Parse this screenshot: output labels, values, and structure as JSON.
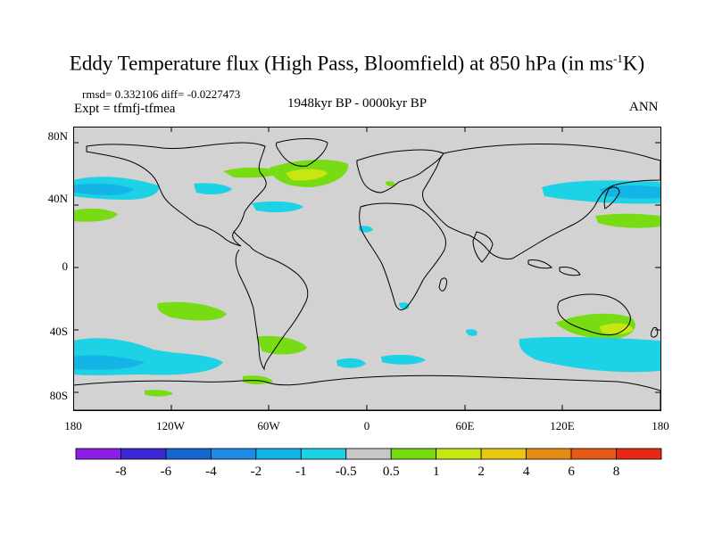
{
  "title": {
    "main": "Eddy Temperature flux (High Pass, Bloomfield) at 850 hPa (in ms",
    "sup": "-1",
    "unit_end": "K)"
  },
  "stats": "rmsd= 0.332106 diff= -0.0227473",
  "expt": "Expt = tfmfj-tfmea",
  "period": "1948kyr BP - 0000kyr BP",
  "season": "ANN",
  "axes": {
    "lat_labels": [
      "80N",
      "40N",
      "0",
      "40S",
      "80S"
    ],
    "lon_labels": [
      "180",
      "120W",
      "60W",
      "0",
      "60E",
      "120E",
      "180"
    ]
  },
  "colorbar": {
    "labels": [
      "-8",
      "-6",
      "-4",
      "-2",
      "-1",
      "-0.5",
      "0.5",
      "1",
      "2",
      "4",
      "6",
      "8"
    ],
    "colors": [
      "#8c1ee6",
      "#3c28d2",
      "#1464d2",
      "#1e8ce6",
      "#14b4e6",
      "#1ed2e6",
      "#c8c8c8",
      "#78dc14",
      "#c8e614",
      "#e6c814",
      "#e68c14",
      "#e65a14",
      "#e62814"
    ]
  },
  "colors": {
    "land_ocean_neutral": "#d2d2d2",
    "coastline": "#000000"
  }
}
